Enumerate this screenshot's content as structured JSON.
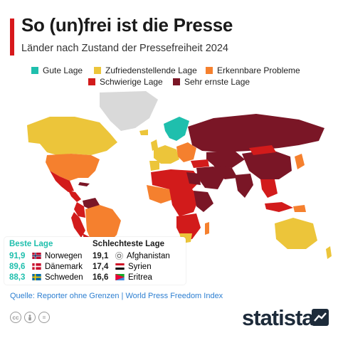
{
  "header": {
    "title": "So (un)frei ist die Presse",
    "subtitle": "Länder nach Zustand der Pressefreiheit 2024"
  },
  "legend": {
    "items": [
      {
        "label": "Gute Lage",
        "color": "#1fbfad"
      },
      {
        "label": "Zufriedenstellende Lage",
        "color": "#ecc53a"
      },
      {
        "label": "Erkennbare Probleme",
        "color": "#f5802e"
      },
      {
        "label": "Schwierige Lage",
        "color": "#d21b1b"
      },
      {
        "label": "Sehr ernste Lage",
        "color": "#7a1626"
      }
    ]
  },
  "rankings": {
    "best": {
      "heading": "Beste Lage",
      "heading_color": "#1fbfad",
      "rows": [
        {
          "score": "91,9",
          "country": "Norwegen",
          "flag": "norway-flag-icon"
        },
        {
          "score": "89,6",
          "country": "Dänemark",
          "flag": "denmark-flag-icon"
        },
        {
          "score": "88,3",
          "country": "Schweden",
          "flag": "sweden-flag-icon"
        }
      ]
    },
    "worst": {
      "heading": "Schlechteste Lage",
      "heading_color": "#1a1a1a",
      "rows": [
        {
          "score": "19,1",
          "country": "Afghanistan",
          "flag": "afghanistan-flag-icon"
        },
        {
          "score": "17,4",
          "country": "Syrien",
          "flag": "syria-flag-icon"
        },
        {
          "score": "16,6",
          "country": "Eritrea",
          "flag": "eritrea-flag-icon"
        }
      ]
    }
  },
  "footer": {
    "source": "Quelle: Reporter ohne Grenzen | World Press Freedom Index",
    "brand": "statista",
    "cc_icons": [
      "cc-icon",
      "by-icon",
      "nd-icon"
    ]
  },
  "colors": {
    "accent": "#d7191c",
    "no_data": "#d9d9d9"
  }
}
